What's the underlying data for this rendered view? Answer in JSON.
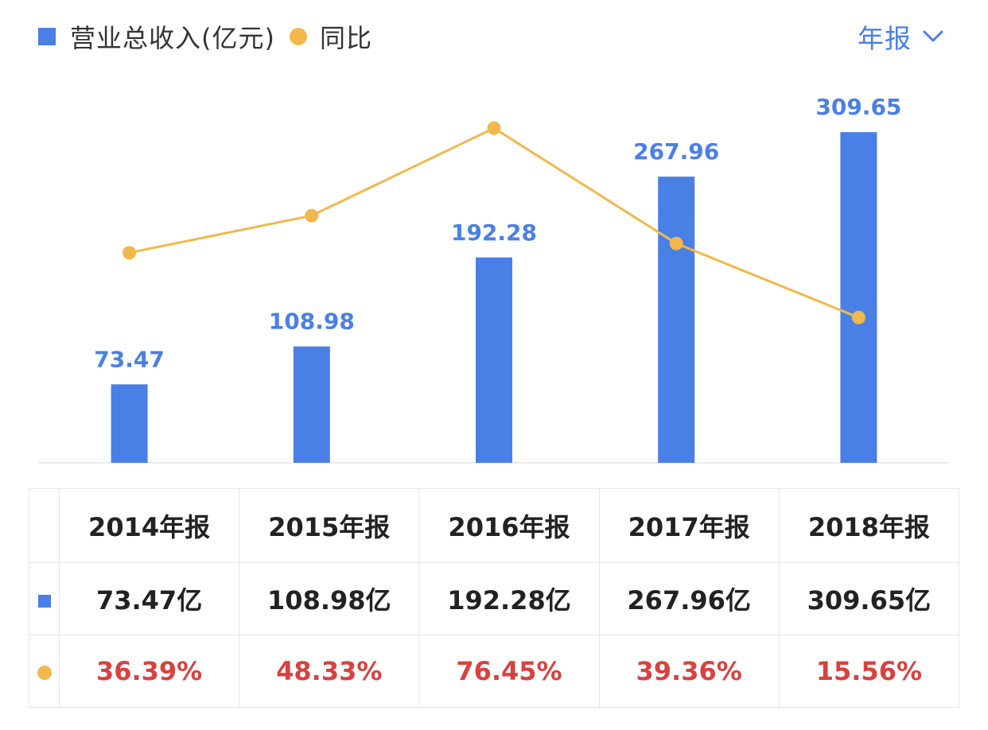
{
  "colors": {
    "bar": "#4a7fe6",
    "line": "#f2b84b",
    "label": "#4a7fe6",
    "yoy_text": "#d9413f",
    "axis": "#e6e6e6"
  },
  "legend": {
    "revenue_label": "营业总收入(亿元)",
    "yoy_label": "同比"
  },
  "period_selector": {
    "label": "年报",
    "icon": "chevron-down-icon"
  },
  "chart_data": {
    "type": "bar",
    "categories": [
      "2014年报",
      "2015年报",
      "2016年报",
      "2017年报",
      "2018年报"
    ],
    "series": [
      {
        "name": "营业总收入(亿元)",
        "type": "bar",
        "values": [
          73.47,
          108.98,
          192.28,
          267.96,
          309.65
        ],
        "labels": [
          "73.47",
          "108.98",
          "192.28",
          "267.96",
          "309.65"
        ]
      },
      {
        "name": "同比",
        "type": "line",
        "values": [
          36.39,
          48.33,
          76.45,
          39.36,
          15.56
        ]
      }
    ],
    "legend_position": "top-left"
  },
  "table": {
    "headers": [
      "2014年报",
      "2015年报",
      "2016年报",
      "2017年报",
      "2018年报"
    ],
    "revenue_row": [
      "73.47亿",
      "108.98亿",
      "192.28亿",
      "267.96亿",
      "309.65亿"
    ],
    "yoy_row": [
      "36.39%",
      "48.33%",
      "76.45%",
      "39.36%",
      "15.56%"
    ]
  }
}
